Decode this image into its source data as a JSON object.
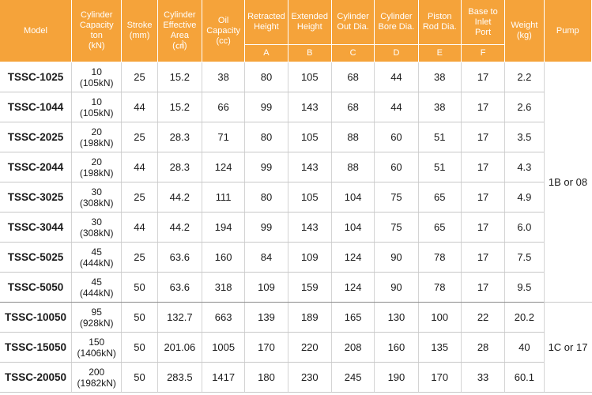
{
  "header": {
    "model": "Model",
    "capacity": [
      "Cylinder",
      "Capacity",
      "ton",
      "(kN)"
    ],
    "stroke": [
      "Stroke",
      "(mm)"
    ],
    "area": [
      "Cylinder",
      "Effective",
      "Area",
      "(㎠)"
    ],
    "oil": [
      "Oil",
      "Capacity",
      "(cc)"
    ],
    "retracted": [
      "Retracted",
      "Height"
    ],
    "extended": [
      "Extended",
      "Height"
    ],
    "out_dia": [
      "Cylinder",
      "Out Dia."
    ],
    "bore_dia": [
      "Cylinder",
      "Bore Dia."
    ],
    "rod_dia": [
      "Piston",
      "Rod Dia."
    ],
    "inlet": [
      "Base to",
      "Inlet",
      "Port"
    ],
    "weight": [
      "Weight",
      "(kg)"
    ],
    "pump": "Pump",
    "sub": [
      "A",
      "B",
      "C",
      "D",
      "E",
      "F"
    ]
  },
  "rows": [
    {
      "model": "TSSC-1025",
      "ton": "10",
      "kn": "(105kN)",
      "stroke": "25",
      "area": "15.2",
      "oil": "38",
      "a": "80",
      "b": "105",
      "c": "68",
      "d": "44",
      "e": "38",
      "f": "17",
      "weight": "2.2"
    },
    {
      "model": "TSSC-1044",
      "ton": "10",
      "kn": "(105kN)",
      "stroke": "44",
      "area": "15.2",
      "oil": "66",
      "a": "99",
      "b": "143",
      "c": "68",
      "d": "44",
      "e": "38",
      "f": "17",
      "weight": "2.6"
    },
    {
      "model": "TSSC-2025",
      "ton": "20",
      "kn": "(198kN)",
      "stroke": "25",
      "area": "28.3",
      "oil": "71",
      "a": "80",
      "b": "105",
      "c": "88",
      "d": "60",
      "e": "51",
      "f": "17",
      "weight": "3.5"
    },
    {
      "model": "TSSC-2044",
      "ton": "20",
      "kn": "(198kN)",
      "stroke": "44",
      "area": "28.3",
      "oil": "124",
      "a": "99",
      "b": "143",
      "c": "88",
      "d": "60",
      "e": "51",
      "f": "17",
      "weight": "4.3"
    },
    {
      "model": "TSSC-3025",
      "ton": "30",
      "kn": "(308kN)",
      "stroke": "25",
      "area": "44.2",
      "oil": "111",
      "a": "80",
      "b": "105",
      "c": "104",
      "d": "75",
      "e": "65",
      "f": "17",
      "weight": "4.9"
    },
    {
      "model": "TSSC-3044",
      "ton": "30",
      "kn": "(308kN)",
      "stroke": "44",
      "area": "44.2",
      "oil": "194",
      "a": "99",
      "b": "143",
      "c": "104",
      "d": "75",
      "e": "65",
      "f": "17",
      "weight": "6.0"
    },
    {
      "model": "TSSC-5025",
      "ton": "45",
      "kn": "(444kN)",
      "stroke": "25",
      "area": "63.6",
      "oil": "160",
      "a": "84",
      "b": "109",
      "c": "124",
      "d": "90",
      "e": "78",
      "f": "17",
      "weight": "7.5"
    },
    {
      "model": "TSSC-5050",
      "ton": "45",
      "kn": "(444kN)",
      "stroke": "50",
      "area": "63.6",
      "oil": "318",
      "a": "109",
      "b": "159",
      "c": "124",
      "d": "90",
      "e": "78",
      "f": "17",
      "weight": "9.5"
    },
    {
      "model": "TSSC-10050",
      "ton": "95",
      "kn": "(928kN)",
      "stroke": "50",
      "area": "132.7",
      "oil": "663",
      "a": "139",
      "b": "189",
      "c": "165",
      "d": "130",
      "e": "100",
      "f": "22",
      "weight": "20.2"
    },
    {
      "model": "TSSC-15050",
      "ton": "150",
      "kn": "(1406kN)",
      "stroke": "50",
      "area": "201.06",
      "oil": "1005",
      "a": "170",
      "b": "220",
      "c": "208",
      "d": "160",
      "e": "135",
      "f": "28",
      "weight": "40"
    },
    {
      "model": "TSSC-20050",
      "ton": "200",
      "kn": "(1982kN)",
      "stroke": "50",
      "area": "283.5",
      "oil": "1417",
      "a": "180",
      "b": "230",
      "c": "245",
      "d": "190",
      "e": "170",
      "f": "33",
      "weight": "60.1"
    }
  ],
  "pump_groups": [
    "1B or 08",
    "1C or 17"
  ],
  "colors": {
    "header_bg": "#f5a33a",
    "header_text": "#ffffff"
  }
}
